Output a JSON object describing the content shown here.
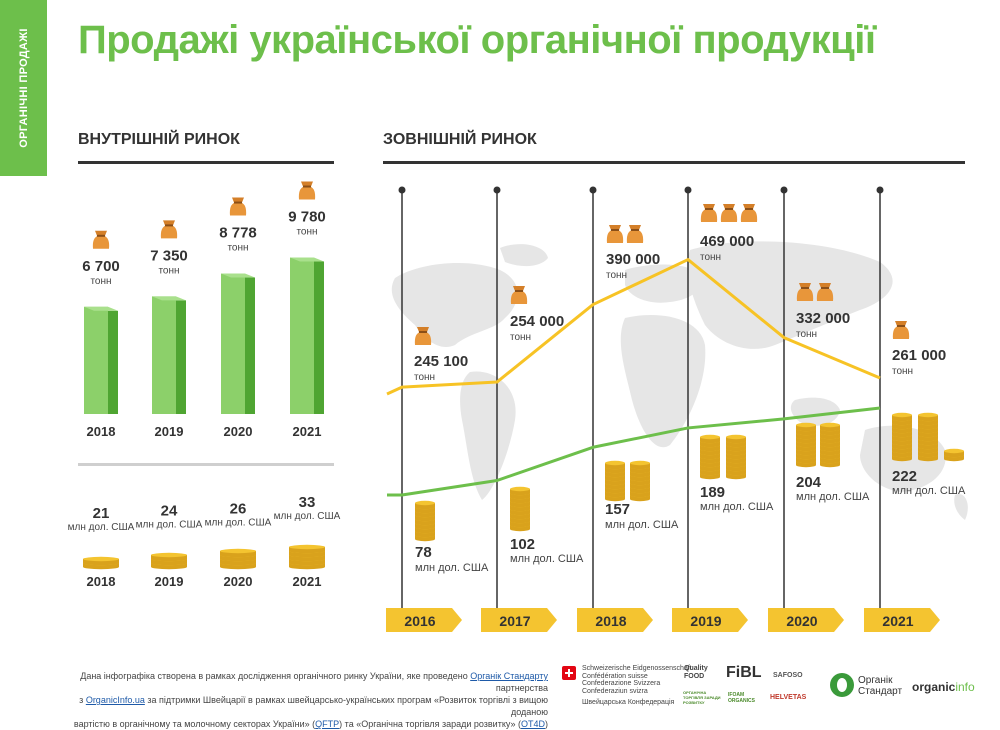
{
  "side_tab": "ОРГАНІЧНІ ПРОДАЖІ",
  "title": "Продажі української органічної продукції",
  "domestic": {
    "heading": "ВНУТРІШНІЙ РИНОК"
  },
  "export": {
    "heading": "ЗОВНІШНІЙ РИНОК"
  },
  "chart_data": [
    {
      "type": "bar",
      "title": "ВНУТРІШНІЙ РИНОК",
      "categories": [
        "2018",
        "2019",
        "2020",
        "2021"
      ],
      "series": [
        {
          "name": "volume",
          "values": [
            6700,
            7350,
            8778,
            9780
          ],
          "labels": [
            "6 700",
            "7 350",
            "8 778",
            "9 780"
          ],
          "unit": "тонн"
        },
        {
          "name": "value",
          "values": [
            21,
            24,
            26,
            33
          ],
          "unit": "млн дол. США"
        }
      ]
    },
    {
      "type": "line",
      "title": "ЗОВНІШНІЙ РИНОК",
      "categories": [
        "2016",
        "2017",
        "2018",
        "2019",
        "2020",
        "2021"
      ],
      "series": [
        {
          "name": "volume",
          "color": "#f7c325",
          "values": [
            245100,
            254000,
            390000,
            469000,
            332000,
            261000
          ],
          "labels": [
            "245 100",
            "254 000",
            "390 000",
            "469 000",
            "332 000",
            "261 000"
          ],
          "unit": "тонн"
        },
        {
          "name": "value",
          "color": "#6dbf4b",
          "values": [
            78,
            102,
            157,
            189,
            204,
            222
          ],
          "unit": "млн дол. США"
        }
      ]
    }
  ],
  "footer": {
    "line1_pre": "Дана інфографіка створена в рамках дослідження органічного ринку України, яке проведено ",
    "link1": "Органік Стандарту",
    "line1_post": " партнерства",
    "line2_pre": "з ",
    "link2": "OrganicInfo.ua",
    "line2_post": " за підтримки Швейцарії в рамках швейцарсько-українських програм «Розвиток торгівлі з вищою доданою",
    "line3": "вартістю в органічному та молочному секторах України» (",
    "link3": "QFTP",
    "line3_mid": ") та «Органічна торгівля заради розвитку» (",
    "link4": "OT4D",
    "line3_end": ")"
  },
  "logos": {
    "swiss_lines": [
      "Schweizerische Eidgenossenschaft",
      "Confédération suisse",
      "Confederazione Svizzera",
      "Confederaziun svizra"
    ],
    "swiss_ua": "Швейцарська Конфедерація",
    "quality_food": "Quality FOOD",
    "fibl": "FiBL",
    "safoso": "SAFOSO",
    "organic_trade": "ОРГАНІЧНА ТОРГІВЛЯ ЗАРАДИ РОЗВИТКУ",
    "ifoam": "IFOAM ORGANICS",
    "helvetas": "HELVETAS",
    "organic_standard": "Органік Стандарт",
    "organicinfo_a": "organic",
    "organicinfo_b": "info"
  }
}
